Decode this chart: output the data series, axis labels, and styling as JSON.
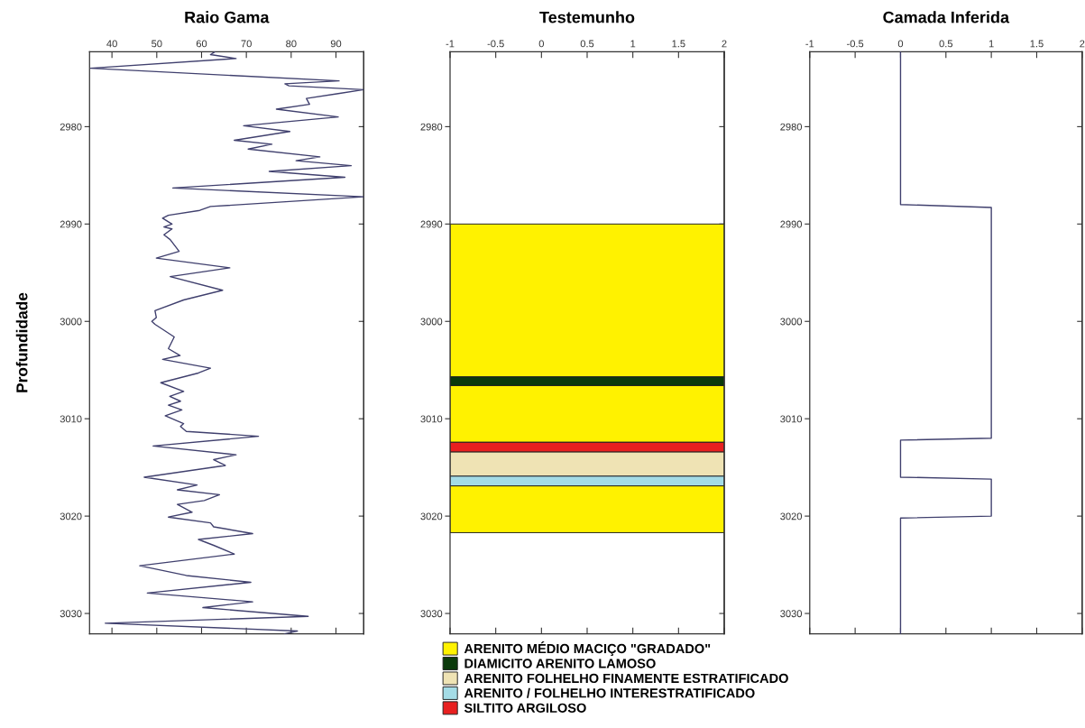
{
  "chart_data": [
    {
      "type": "line",
      "title": "Raio Gama",
      "ylabel": "Profundidade",
      "series": [
        {
          "color": "#40406e",
          "x": [
            63.0,
            62.0,
            67.7,
            35.2,
            90.7,
            78.6,
            79.5,
            96.2,
            90.5,
            83.4,
            84.1,
            76.7,
            90.5,
            69.4,
            79.7,
            67.3,
            75.7,
            70.4,
            86.4,
            81.1,
            93.4,
            75.1,
            92.0,
            53.6,
            96.2,
            62.0,
            59.6,
            52.6,
            51.3,
            53.4,
            51.6,
            53.4,
            51.6,
            53.0,
            55.0,
            49.9,
            66.3,
            53.0,
            64.7,
            56.0,
            49.6,
            49.9,
            48.9,
            49.6,
            53.9,
            52.6,
            55.2,
            51.3,
            62.0,
            59.3,
            50.9,
            56.0,
            52.9,
            55.3,
            52.6,
            55.6,
            51.9,
            56.0,
            55.3,
            56.6,
            72.7,
            49.2,
            67.7,
            62.7,
            65.3,
            47.2,
            59.0,
            54.6,
            64.0,
            60.6,
            54.6,
            57.9,
            52.6,
            62.0,
            62.7,
            71.4,
            59.3,
            62.7,
            67.3,
            46.2,
            56.6,
            71.0,
            47.9,
            71.4,
            60.3,
            83.8,
            38.5,
            81.4,
            78.5
          ],
          "values": [
            2972.3,
            2972.6,
            2973.0,
            2974.0,
            2975.3,
            2975.6,
            2975.8,
            2976.2,
            2976.6,
            2977.1,
            2977.7,
            2978.2,
            2979.0,
            2979.9,
            2980.5,
            2981.4,
            2981.8,
            2982.3,
            2983.1,
            2983.5,
            2984.0,
            2984.6,
            2985.2,
            2986.3,
            2987.2,
            2988.2,
            2988.6,
            2989.1,
            2989.4,
            2990.0,
            2990.3,
            2990.5,
            2991.1,
            2991.6,
            2992.8,
            2993.5,
            2994.5,
            2995.4,
            2996.8,
            2997.8,
            2998.9,
            2999.6,
            3000.0,
            3000.3,
            3001.6,
            3002.8,
            3003.5,
            3003.9,
            3004.8,
            3005.3,
            3006.3,
            3007.2,
            3007.7,
            3008.2,
            3008.6,
            3009.1,
            3009.7,
            3010.5,
            3010.8,
            3011.3,
            3011.8,
            3012.8,
            3013.7,
            3014.2,
            3014.8,
            3016.0,
            3016.8,
            3017.3,
            3017.8,
            3018.4,
            3018.8,
            3019.6,
            3020.1,
            3020.7,
            3021.1,
            3021.8,
            3022.4,
            3023.0,
            3023.9,
            3025.1,
            3026.1,
            3026.8,
            3027.9,
            3028.8,
            3029.4,
            3030.3,
            3031.0,
            3031.8,
            3032.1
          ]
        }
      ],
      "xlim": [
        35.0,
        96.2
      ],
      "xticks": [
        40,
        50,
        60,
        70,
        80,
        90
      ],
      "ylim": [
        3032.1,
        2972.3
      ],
      "yticks": [
        2980,
        2990,
        3000,
        3010,
        3020,
        3030
      ]
    },
    {
      "type": "bar",
      "title": "Testemunho",
      "legend": "bottom",
      "series": [
        {
          "name": "ARENITO MÉDIO MACIÇO \"GRADADO\"",
          "color": "#fff200",
          "x": [
            0.5
          ],
          "base": [
            2990.0
          ],
          "values": [
            15.7
          ]
        },
        {
          "name": "DIAMICITO ARENITO LAMOSO",
          "color": "#0b3a0b",
          "x": [
            0.5
          ],
          "base": [
            3005.7
          ],
          "values": [
            0.9
          ]
        },
        {
          "name": "ARENITO FOLHELHO FINAMENTE ESTRATIFICADO",
          "color": "#efe3b4",
          "x": [
            0.5
          ],
          "base": [
            3013.4
          ],
          "values": [
            2.5
          ]
        },
        {
          "name": "ARENITO / FOLHELHO INTERESTRATIFICADO",
          "color": "#a4dce6",
          "x": [
            0.5
          ],
          "base": [
            3015.9
          ],
          "values": [
            1.0
          ]
        },
        {
          "name": "SILTITO ARGILOSO",
          "color": "#e82020",
          "x": [
            0.5
          ],
          "base": [
            3012.4
          ],
          "values": [
            1.0
          ]
        },
        {
          "color": "#fff200",
          "x": [
            0.5
          ],
          "base": [
            3006.6
          ],
          "values": [
            5.8
          ]
        },
        {
          "color": "#fff200",
          "x": [
            0.5
          ],
          "base": [
            3016.9
          ],
          "values": [
            4.8
          ]
        }
      ],
      "xlim": [
        -1,
        2
      ],
      "xticks": [
        -1,
        -0.5,
        0,
        0.5,
        1,
        1.5,
        2
      ],
      "ylim": [
        3032.1,
        2972.3
      ],
      "yticks": [
        2980,
        2990,
        3000,
        3010,
        3020,
        3030
      ]
    },
    {
      "type": "line",
      "title": "Camada Inferida",
      "series": [
        {
          "color": "#40406e",
          "x": [
            0,
            0,
            1,
            1,
            0,
            0,
            1,
            1,
            0,
            0
          ],
          "values": [
            2972.3,
            2988.0,
            2988.3,
            3012.0,
            3012.2,
            3016.0,
            3016.2,
            3020.0,
            3020.2,
            3032.1
          ]
        }
      ],
      "xlim": [
        -1,
        2
      ],
      "xticks": [
        -1,
        -0.5,
        0,
        0.5,
        1,
        1.5,
        2
      ],
      "ylim": [
        3032.1,
        2972.3
      ],
      "yticks": [
        2980,
        2990,
        3000,
        3010,
        3020,
        3030
      ]
    }
  ]
}
